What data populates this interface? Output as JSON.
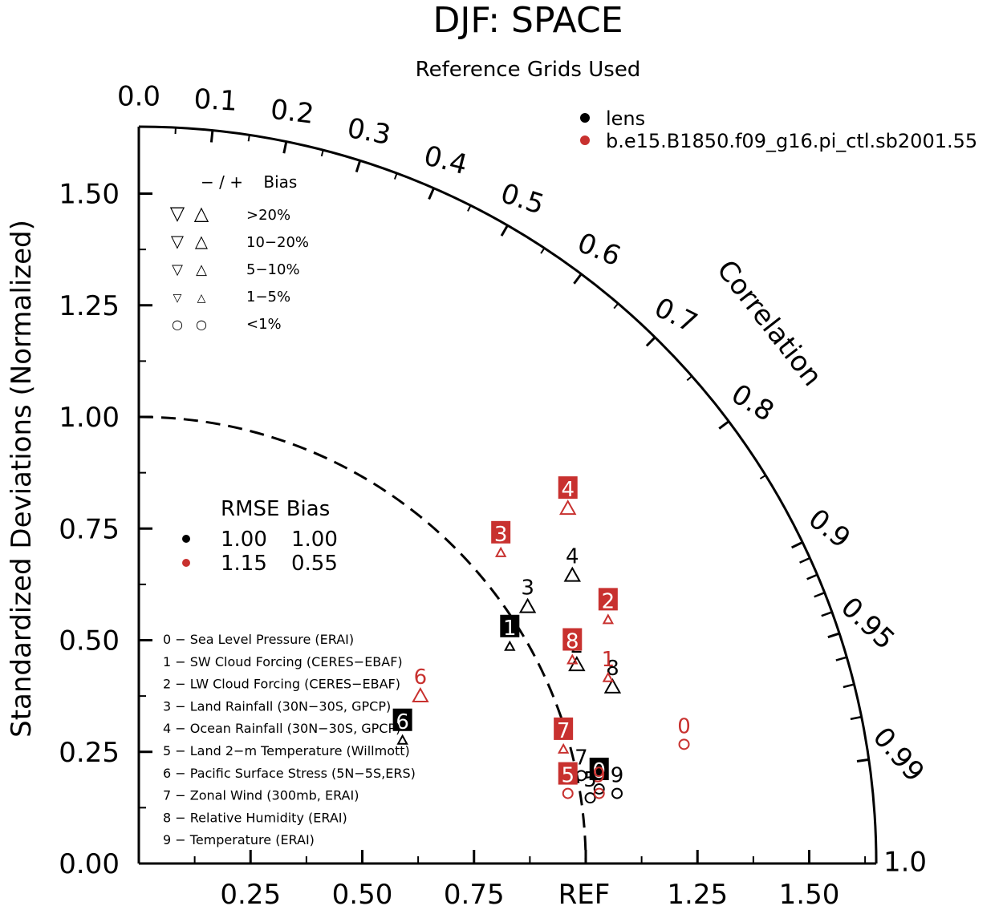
{
  "chart_data": {
    "type": "scatter",
    "subtype": "taylor-diagram",
    "title": "DJF: SPACE",
    "subtitle": "Reference Grids Used",
    "ylabel": "Standardized Deviations (Normalized)",
    "arc_label": "Correlation",
    "ref_label": "REF",
    "x_ticks": [
      "0.25",
      "0.50",
      "0.75",
      "1.25",
      "1.50"
    ],
    "y_ticks": [
      "0.00",
      "0.25",
      "0.50",
      "0.75",
      "1.00",
      "1.25",
      "1.50"
    ],
    "corr_ticks": [
      "0.0",
      "0.1",
      "0.2",
      "0.3",
      "0.4",
      "0.5",
      "0.6",
      "0.7",
      "0.8",
      "0.9",
      "0.95",
      "0.99",
      "1.0"
    ],
    "std_max": 1.65,
    "ref_std": 1.0,
    "legend": {
      "series": [
        {
          "name": "lens",
          "color": "#000000"
        },
        {
          "name": "b.e15.B1850.f09_g16.pi_ctl.sb2001.55",
          "color": "#c8312f"
        }
      ],
      "bias_header": "− / +    Bias",
      "bias_rows": [
        {
          "neg": "▽",
          "pos": "△",
          "label": ">20%"
        },
        {
          "neg": "▽",
          "pos": "△",
          "label": "10−20%"
        },
        {
          "neg": "▽",
          "pos": "△",
          "label": "5−10%"
        },
        {
          "neg": "▽",
          "pos": "△",
          "label": "1−5%"
        },
        {
          "neg": "○",
          "pos": "○",
          "label": "<1%"
        }
      ],
      "rmse_header": "RMSE Bias",
      "rmse_rows": [
        {
          "color": "#000000",
          "rmse": "1.00",
          "bias": "1.00"
        },
        {
          "color": "#c8312f",
          "rmse": "1.15",
          "bias": "0.55"
        }
      ],
      "variables": [
        "0 − Sea Level Pressure (ERAI)",
        "1 − SW Cloud Forcing (CERES−EBAF)",
        "2 − LW Cloud Forcing (CERES−EBAF)",
        "3 − Land Rainfall (30N−30S, GPCP)",
        "4 − Ocean Rainfall (30N−30S, GPCP)",
        "5 − Land 2−m Temperature (Willmott)",
        "6 − Pacific Surface Stress (5N−5S,ERS)",
        "7 − Zonal Wind (300mb, ERAI)",
        "8 − Relative Humidity (ERAI)",
        "9 − Temperature (ERAI)"
      ]
    },
    "series": [
      {
        "name": "lens",
        "color": "#000000",
        "points": [
          {
            "id": "0",
            "x": 1.03,
            "y": 0.21,
            "marker": "circle",
            "boxed": true
          },
          {
            "id": "1",
            "x": 0.83,
            "y": 0.53,
            "marker": "tri-up-small",
            "boxed": true
          },
          {
            "id": "2",
            "x": 0.98,
            "y": 0.49,
            "marker": "tri-up",
            "boxed": false
          },
          {
            "id": "3",
            "x": 0.87,
            "y": 0.62,
            "marker": "tri-up",
            "boxed": false
          },
          {
            "id": "4",
            "x": 0.97,
            "y": 0.69,
            "marker": "tri-up",
            "boxed": false
          },
          {
            "id": "5",
            "x": 1.01,
            "y": 0.19,
            "marker": "circle",
            "boxed": false
          },
          {
            "id": "6",
            "x": 0.59,
            "y": 0.32,
            "marker": "tri-up-small",
            "boxed": true
          },
          {
            "id": "7",
            "x": 0.99,
            "y": 0.24,
            "marker": "circle",
            "boxed": false
          },
          {
            "id": "8",
            "x": 1.06,
            "y": 0.44,
            "marker": "tri-up",
            "boxed": false
          },
          {
            "id": "9",
            "x": 1.07,
            "y": 0.2,
            "marker": "circle",
            "boxed": false
          }
        ]
      },
      {
        "name": "b.e15.B1850.f09_g16.pi_ctl.sb2001.55",
        "color": "#c8312f",
        "points": [
          {
            "id": "0",
            "x": 1.22,
            "y": 0.31,
            "marker": "circle",
            "boxed": false
          },
          {
            "id": "1",
            "x": 1.05,
            "y": 0.46,
            "marker": "tri-up-small",
            "boxed": false
          },
          {
            "id": "2",
            "x": 1.05,
            "y": 0.59,
            "marker": "tri-up-small",
            "boxed": true
          },
          {
            "id": "3",
            "x": 0.81,
            "y": 0.74,
            "marker": "tri-up-small",
            "boxed": true
          },
          {
            "id": "4",
            "x": 0.96,
            "y": 0.84,
            "marker": "tri-up",
            "boxed": true
          },
          {
            "id": "5",
            "x": 0.96,
            "y": 0.2,
            "marker": "circle",
            "boxed": true
          },
          {
            "id": "6",
            "x": 0.63,
            "y": 0.42,
            "marker": "tri-up",
            "boxed": false
          },
          {
            "id": "7",
            "x": 0.95,
            "y": 0.3,
            "marker": "tri-up-small",
            "boxed": true
          },
          {
            "id": "8",
            "x": 0.97,
            "y": 0.5,
            "marker": "tri-up-small",
            "boxed": true
          },
          {
            "id": "9",
            "x": 1.03,
            "y": 0.2,
            "marker": "circle",
            "boxed": false
          }
        ]
      }
    ]
  }
}
